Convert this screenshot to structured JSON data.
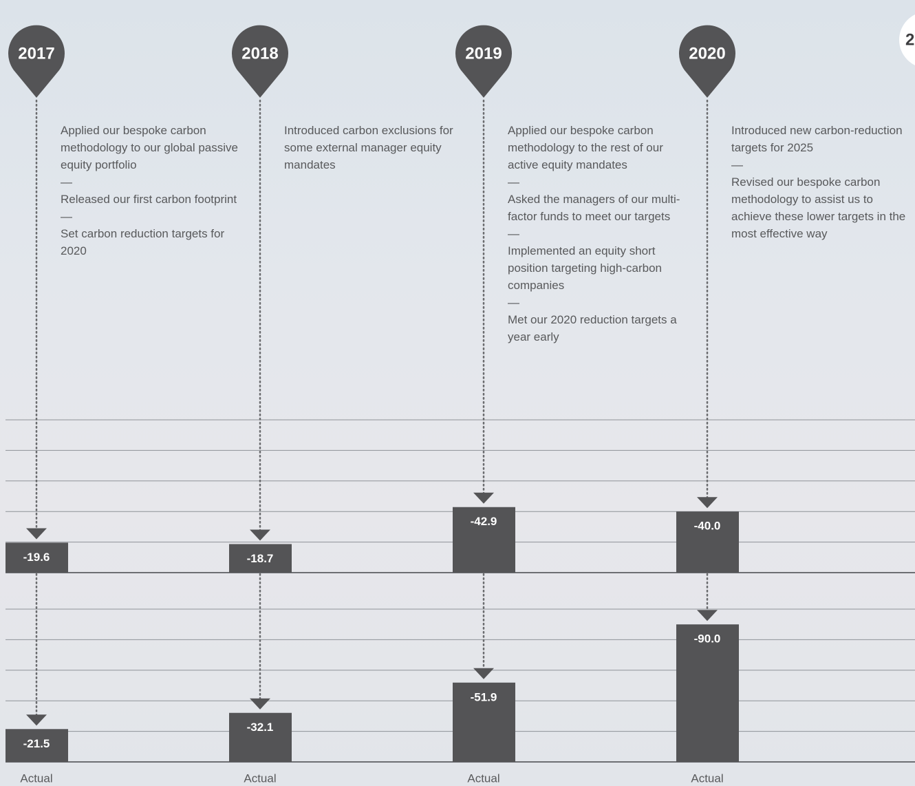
{
  "timeline": {
    "years": [
      "2017",
      "2018",
      "2019",
      "2020"
    ],
    "notes": [
      [
        "Applied our bespoke carbon methodology to our global passive equity portfolio",
        "—",
        "Released our first carbon footprint",
        "—",
        "Set carbon reduction targets for 2020"
      ],
      [
        "Introduced carbon exclusions for some external manager equity mandates"
      ],
      [
        "Applied our bespoke carbon methodology to the rest of our active equity mandates",
        "—",
        "Asked the managers of our multi-factor funds to meet our targets",
        "—",
        "Implemented an equity short position targeting high-carbon companies",
        "—",
        "Met our 2020 reduction targets a year early"
      ],
      [
        "Introduced new carbon-reduction targets for 2025",
        "—",
        "Revised our bespoke carbon methodology to assist us to achieve these lower targets in the most effective way"
      ]
    ],
    "clipped_pin_label": "2"
  },
  "chart_data": [
    {
      "type": "bar",
      "values": [
        -19.6,
        -18.7,
        -42.9,
        -40.0
      ],
      "value_labels": [
        "-19.6",
        "-18.7",
        "-42.9",
        "-40.0"
      ],
      "color": "#545456",
      "ylim": [
        0,
        -100
      ],
      "yticks": [
        0,
        -20,
        -40,
        -60,
        -80,
        -100
      ],
      "grid": true
    },
    {
      "type": "bar",
      "values": [
        -21.5,
        -32.1,
        -51.9,
        -90.0
      ],
      "value_labels": [
        "-21.5",
        "-32.1",
        "-51.9",
        "-90.0"
      ],
      "bar_caption": "Actual",
      "color": "#545456",
      "ylim": [
        0,
        -100
      ],
      "yticks": [
        0,
        -20,
        -40,
        -60,
        -80,
        -100
      ],
      "grid": true
    }
  ]
}
